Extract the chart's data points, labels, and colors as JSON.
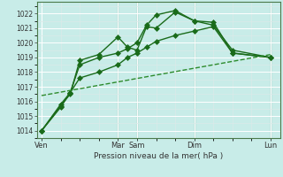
{
  "xlabel": "Pression niveau de la mer( hPa )",
  "bg_color": "#c8ece8",
  "grid_color_major": "#b8d8d4",
  "grid_color_minor": "#d4ecec",
  "line_color_main": "#1a6b1a",
  "line_color_dashed": "#2d8b2d",
  "ylim": [
    1013.5,
    1022.8
  ],
  "yticks": [
    1014,
    1015,
    1016,
    1017,
    1018,
    1019,
    1020,
    1021,
    1022
  ],
  "xtick_labels": [
    "Ven",
    "Mar",
    "Sam",
    "Dim",
    "Lun"
  ],
  "xtick_positions": [
    0,
    8,
    10,
    16,
    24
  ],
  "xlim": [
    -0.5,
    25
  ],
  "vlines_x": [
    8,
    10,
    16,
    24
  ],
  "vline_color": "#4a7a4a",
  "series1_x": [
    0,
    2,
    3,
    4,
    6,
    8,
    9,
    10,
    11,
    12,
    14,
    16,
    18,
    20,
    24
  ],
  "series1_y": [
    1014.0,
    1015.7,
    1016.5,
    1018.8,
    1019.2,
    1020.4,
    1019.7,
    1019.5,
    1021.1,
    1021.0,
    1022.1,
    1021.5,
    1021.4,
    1019.3,
    1019.0
  ],
  "series2_x": [
    0,
    2,
    3,
    4,
    6,
    8,
    9,
    10,
    11,
    12,
    14,
    16,
    18,
    20,
    24
  ],
  "series2_y": [
    1014.0,
    1015.6,
    1016.6,
    1018.5,
    1019.0,
    1019.3,
    1019.6,
    1020.0,
    1021.2,
    1021.9,
    1022.2,
    1021.5,
    1021.2,
    1019.5,
    1019.0
  ],
  "series3_x": [
    0,
    2,
    3,
    4,
    6,
    8,
    9,
    10,
    11,
    12,
    14,
    16,
    18,
    20,
    24
  ],
  "series3_y": [
    1014.0,
    1015.8,
    1016.6,
    1017.6,
    1018.0,
    1018.5,
    1019.0,
    1019.3,
    1019.7,
    1020.1,
    1020.5,
    1020.8,
    1021.1,
    1019.3,
    1019.0
  ],
  "series4_x": [
    0,
    24
  ],
  "series4_y": [
    1016.4,
    1019.2
  ],
  "marker": "D",
  "markersize": 3.0,
  "linewidth": 1.0
}
